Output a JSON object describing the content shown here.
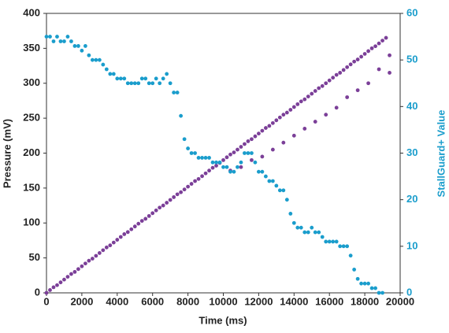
{
  "chart_data": {
    "type": "scatter",
    "xlabel": "Time (ms)",
    "ylabel": "Pressure (mV)",
    "y2label": "StallGuard+ Value",
    "xlim": [
      0,
      20000
    ],
    "xticks": [
      0,
      2000,
      4000,
      6000,
      8000,
      10000,
      12000,
      14000,
      16000,
      18000,
      20000
    ],
    "ylim": [
      0,
      400
    ],
    "yticks": [
      0,
      50,
      100,
      150,
      200,
      250,
      300,
      350,
      400
    ],
    "y2lim": [
      0,
      60
    ],
    "y2ticks": [
      0,
      10,
      20,
      30,
      40,
      50,
      60
    ],
    "y2color": "#1a9dcc",
    "series": [
      {
        "color": "#7b3f98",
        "x": [
          0,
          200,
          400,
          600,
          800,
          1000,
          1200,
          1400,
          1600,
          1800,
          2000,
          2200,
          2400,
          2600,
          2800,
          3000,
          3200,
          3400,
          3600,
          3800,
          4000,
          4200,
          4400,
          4600,
          4800,
          5000,
          5200,
          5400,
          5600,
          5800,
          6000,
          6200,
          6400,
          6600,
          6800,
          7000,
          7200,
          7400,
          7600,
          7800,
          8000,
          8200,
          8400,
          8600,
          8800,
          9000,
          9200,
          9400,
          9600,
          9800,
          10000,
          10200,
          10400,
          10600,
          10800,
          11000,
          11200,
          11400,
          11600,
          11800,
          12000,
          12200,
          12400,
          12600,
          12800,
          13000,
          13200,
          13400,
          13600,
          13800,
          14000,
          14200,
          14400,
          14600,
          14800,
          15000,
          15200,
          15400,
          15600,
          15800,
          16000,
          16200,
          16400,
          16600,
          16800,
          17000,
          17200,
          17400,
          17600,
          17800,
          18000,
          18200,
          18400,
          18600,
          18800,
          19000,
          19200,
          10400,
          11000,
          11600,
          12200,
          12800,
          13400,
          14000,
          14600,
          15200,
          15800,
          16400,
          17000,
          17600,
          18200,
          18800,
          19400,
          19400
        ],
        "values": [
          0,
          4,
          8,
          11,
          15,
          19,
          23,
          27,
          30,
          34,
          38,
          42,
          46,
          49,
          53,
          57,
          61,
          65,
          68,
          72,
          76,
          80,
          84,
          87,
          91,
          95,
          99,
          103,
          106,
          110,
          114,
          118,
          122,
          125,
          129,
          133,
          137,
          141,
          144,
          148,
          152,
          156,
          160,
          163,
          167,
          171,
          175,
          179,
          182,
          186,
          190,
          194,
          198,
          201,
          205,
          209,
          213,
          217,
          220,
          224,
          228,
          232,
          236,
          239,
          243,
          247,
          251,
          255,
          258,
          262,
          266,
          270,
          274,
          277,
          281,
          285,
          289,
          293,
          296,
          300,
          304,
          308,
          312,
          315,
          319,
          323,
          327,
          331,
          334,
          338,
          342,
          346,
          350,
          353,
          357,
          361,
          365,
          175,
          180,
          190,
          195,
          205,
          215,
          225,
          235,
          245,
          255,
          265,
          280,
          290,
          300,
          320,
          315,
          340
        ]
      },
      {
        "color": "#1a9dcc",
        "axis": "y2",
        "x": [
          0,
          200,
          400,
          600,
          800,
          1000,
          1200,
          1400,
          1600,
          1800,
          2000,
          2200,
          2400,
          2600,
          2800,
          3000,
          3200,
          3400,
          3600,
          3800,
          4000,
          4200,
          4400,
          4600,
          4800,
          5000,
          5200,
          5400,
          5600,
          5800,
          6000,
          6200,
          6400,
          6600,
          6800,
          7000,
          7200,
          7400,
          7600,
          7800,
          8000,
          8200,
          8400,
          8600,
          8800,
          9000,
          9200,
          9400,
          9600,
          9800,
          10000,
          10200,
          10400,
          10600,
          10800,
          11000,
          11200,
          11400,
          11600,
          11800,
          12000,
          12200,
          12400,
          12600,
          12800,
          13000,
          13200,
          13400,
          13600,
          13800,
          14000,
          14200,
          14400,
          14600,
          14800,
          15000,
          15200,
          15400,
          15600,
          15800,
          16000,
          16200,
          16400,
          16600,
          16800,
          17000,
          17200,
          17400,
          17600,
          17800,
          18000,
          18200,
          18400,
          18600,
          18800,
          19000
        ],
        "values": [
          55,
          55,
          54,
          55,
          54,
          54,
          55,
          54,
          53,
          53,
          52,
          53,
          51,
          50,
          50,
          50,
          49,
          48,
          47,
          47,
          46,
          46,
          46,
          45,
          45,
          45,
          45,
          46,
          46,
          45,
          45,
          46,
          45,
          46,
          47,
          45,
          43,
          43,
          38,
          33,
          31,
          30,
          30,
          29,
          29,
          29,
          29,
          28,
          28,
          28,
          27,
          27,
          26,
          26,
          27,
          28,
          30,
          30,
          30,
          28,
          26,
          26,
          25,
          24,
          24,
          23,
          22,
          22,
          20,
          17,
          15,
          14,
          14,
          13,
          13,
          14,
          13,
          13,
          12,
          11,
          11,
          11,
          11,
          10,
          10,
          10,
          8,
          5,
          3,
          2,
          2,
          2,
          1,
          1,
          0,
          0
        ]
      }
    ]
  }
}
